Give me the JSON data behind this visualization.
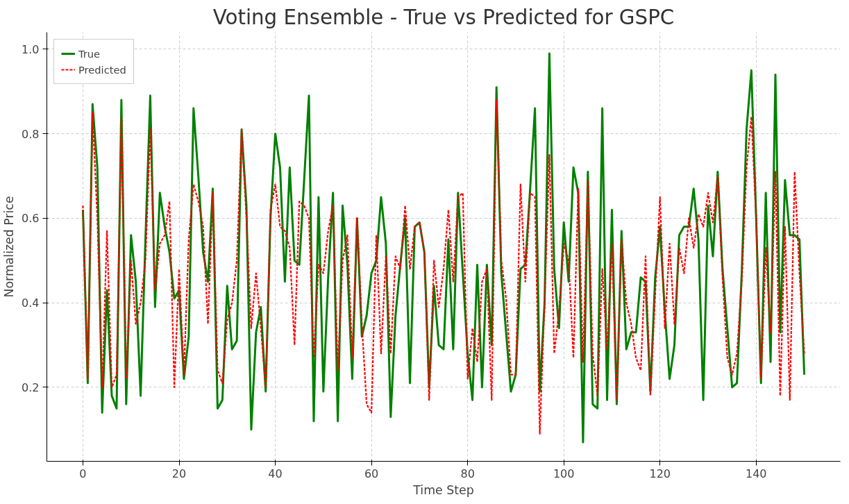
{
  "chart_data": {
    "type": "line",
    "title": "Voting Ensemble - True vs Predicted for GSPC",
    "xlabel": "Time Step",
    "ylabel": "Normalized Price",
    "xlim": [
      -7.5,
      157.5
    ],
    "ylim": [
      0.025,
      1.04
    ],
    "xticks": [
      0,
      20,
      40,
      60,
      80,
      100,
      120,
      140
    ],
    "yticks": [
      0.2,
      0.4,
      0.6,
      0.8,
      {
        "value": 1.0,
        "label": "1.0"
      }
    ],
    "x": [
      0,
      1,
      2,
      3,
      4,
      5,
      6,
      7,
      8,
      9,
      10,
      11,
      12,
      13,
      14,
      15,
      16,
      17,
      18,
      19,
      20,
      21,
      22,
      23,
      24,
      25,
      26,
      27,
      28,
      29,
      30,
      31,
      32,
      33,
      34,
      35,
      36,
      37,
      38,
      39,
      40,
      41,
      42,
      43,
      44,
      45,
      46,
      47,
      48,
      49,
      50,
      51,
      52,
      53,
      54,
      55,
      56,
      57,
      58,
      59,
      60,
      61,
      62,
      63,
      64,
      65,
      66,
      67,
      68,
      69,
      70,
      71,
      72,
      73,
      74,
      75,
      76,
      77,
      78,
      79,
      80,
      81,
      82,
      83,
      84,
      85,
      86,
      87,
      88,
      89,
      90,
      91,
      92,
      93,
      94,
      95,
      96,
      97,
      98,
      99,
      100,
      101,
      102,
      103,
      104,
      105,
      106,
      107,
      108,
      109,
      110,
      111,
      112,
      113,
      114,
      115,
      116,
      117,
      118,
      119,
      120,
      121,
      122,
      123,
      124,
      125,
      126,
      127,
      128,
      129,
      130,
      131,
      132,
      133,
      134,
      135,
      136,
      137,
      138,
      139,
      140,
      141,
      142,
      143,
      144,
      145,
      146,
      147,
      148,
      149,
      150
    ],
    "grid": true,
    "legend": "top left",
    "series": [
      {
        "name": "True",
        "color": "#008000",
        "line_style": "solid",
        "values": [
          0.62,
          0.21,
          0.87,
          0.72,
          0.14,
          0.43,
          0.18,
          0.15,
          0.88,
          0.16,
          0.56,
          0.45,
          0.18,
          0.55,
          0.89,
          0.39,
          0.66,
          0.58,
          0.52,
          0.41,
          0.43,
          0.22,
          0.32,
          0.86,
          0.7,
          0.52,
          0.45,
          0.67,
          0.15,
          0.17,
          0.44,
          0.29,
          0.31,
          0.81,
          0.63,
          0.1,
          0.33,
          0.39,
          0.19,
          0.6,
          0.8,
          0.72,
          0.45,
          0.72,
          0.5,
          0.49,
          0.69,
          0.89,
          0.12,
          0.65,
          0.19,
          0.46,
          0.66,
          0.12,
          0.63,
          0.49,
          0.22,
          0.6,
          0.32,
          0.37,
          0.47,
          0.5,
          0.65,
          0.54,
          0.13,
          0.37,
          0.49,
          0.6,
          0.21,
          0.58,
          0.59,
          0.52,
          0.2,
          0.44,
          0.3,
          0.29,
          0.55,
          0.29,
          0.66,
          0.47,
          0.28,
          0.17,
          0.49,
          0.2,
          0.49,
          0.3,
          0.91,
          0.47,
          0.33,
          0.19,
          0.23,
          0.48,
          0.49,
          0.67,
          0.86,
          0.19,
          0.4,
          0.99,
          0.48,
          0.34,
          0.59,
          0.45,
          0.72,
          0.66,
          0.07,
          0.71,
          0.16,
          0.15,
          0.86,
          0.17,
          0.62,
          0.16,
          0.57,
          0.29,
          0.33,
          0.33,
          0.46,
          0.45,
          0.19,
          0.46,
          0.58,
          0.38,
          0.22,
          0.3,
          0.56,
          0.58,
          0.58,
          0.67,
          0.55,
          0.17,
          0.63,
          0.51,
          0.71,
          0.48,
          0.34,
          0.2,
          0.21,
          0.47,
          0.81,
          0.95,
          0.6,
          0.21,
          0.66,
          0.26,
          0.94,
          0.33,
          0.69,
          0.56,
          0.56,
          0.55,
          0.23
        ]
      },
      {
        "name": "Predicted",
        "color": "#ff0000",
        "line_style": "dashed",
        "values": [
          0.63,
          0.22,
          0.85,
          0.6,
          0.2,
          0.57,
          0.2,
          0.23,
          0.84,
          0.22,
          0.5,
          0.35,
          0.4,
          0.5,
          0.81,
          0.43,
          0.54,
          0.56,
          0.64,
          0.2,
          0.48,
          0.23,
          0.55,
          0.68,
          0.64,
          0.58,
          0.35,
          0.66,
          0.24,
          0.21,
          0.36,
          0.4,
          0.5,
          0.81,
          0.6,
          0.34,
          0.47,
          0.34,
          0.2,
          0.62,
          0.68,
          0.58,
          0.57,
          0.53,
          0.3,
          0.64,
          0.63,
          0.6,
          0.27,
          0.49,
          0.47,
          0.57,
          0.63,
          0.24,
          0.5,
          0.56,
          0.27,
          0.6,
          0.35,
          0.16,
          0.14,
          0.56,
          0.28,
          0.51,
          0.28,
          0.51,
          0.48,
          0.63,
          0.48,
          0.58,
          0.59,
          0.52,
          0.17,
          0.5,
          0.39,
          0.48,
          0.62,
          0.45,
          0.65,
          0.66,
          0.22,
          0.34,
          0.26,
          0.45,
          0.48,
          0.17,
          0.88,
          0.5,
          0.41,
          0.23,
          0.23,
          0.68,
          0.45,
          0.66,
          0.65,
          0.09,
          0.4,
          0.75,
          0.28,
          0.38,
          0.54,
          0.5,
          0.27,
          0.67,
          0.26,
          0.69,
          0.28,
          0.18,
          0.48,
          0.29,
          0.54,
          0.17,
          0.55,
          0.4,
          0.35,
          0.27,
          0.24,
          0.51,
          0.18,
          0.42,
          0.65,
          0.34,
          0.54,
          0.35,
          0.53,
          0.47,
          0.6,
          0.53,
          0.61,
          0.58,
          0.66,
          0.59,
          0.7,
          0.46,
          0.27,
          0.23,
          0.28,
          0.45,
          0.72,
          0.84,
          0.6,
          0.22,
          0.53,
          0.33,
          0.71,
          0.18,
          0.58,
          0.17,
          0.71,
          0.47,
          0.28
        ]
      }
    ]
  }
}
